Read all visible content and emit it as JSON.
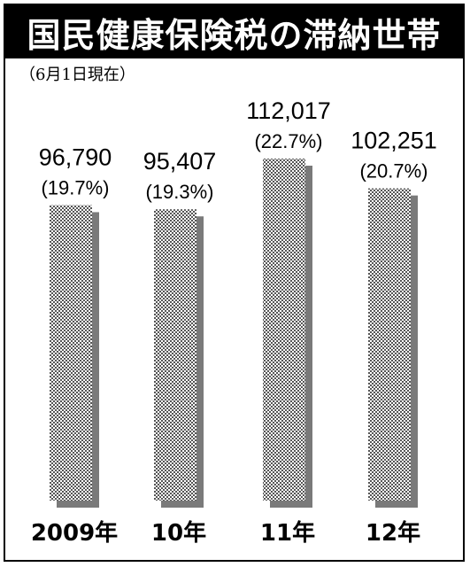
{
  "chart_data": {
    "type": "bar",
    "title": "国民健康保険税の滞納世帯",
    "subtitle": "（6月1日現在）",
    "categories": [
      "2009年",
      "10年",
      "11年",
      "12年"
    ],
    "values": [
      96790,
      95407,
      112017,
      102251
    ],
    "value_labels": [
      "96,790",
      "95,407",
      "112,017",
      "102,251"
    ],
    "percent_labels": [
      "(19.7%)",
      "(19.3%)",
      "(22.7%)",
      "(20.7%)"
    ],
    "percentages": [
      19.7,
      19.3,
      22.7,
      20.7
    ],
    "xlabel": "",
    "ylabel": "",
    "ylim": [
      0,
      112017
    ],
    "grid": false,
    "bar_fill": "dotted-gray",
    "shadow_color": "#7a7a7a"
  }
}
